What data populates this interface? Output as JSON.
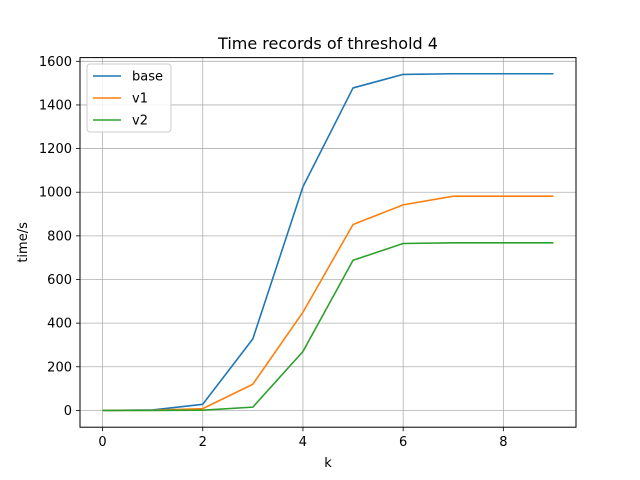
{
  "chart_data": {
    "type": "line",
    "title": "Time records of threshold 4",
    "xlabel": "k",
    "ylabel": "time/s",
    "xlim": [
      -0.45,
      9.45
    ],
    "ylim": [
      -77,
      1617
    ],
    "xticks": [
      0,
      2,
      4,
      6,
      8
    ],
    "yticks": [
      0,
      200,
      400,
      600,
      800,
      1000,
      1200,
      1400,
      1600
    ],
    "grid": true,
    "legend_position": "top-left",
    "x": [
      0,
      1,
      2,
      3,
      4,
      5,
      6,
      7,
      8,
      9
    ],
    "series": [
      {
        "name": "base",
        "color": "#1f77b4",
        "values": [
          0,
          2,
          28,
          328,
          1025,
          1478,
          1540,
          1543,
          1543,
          1543
        ]
      },
      {
        "name": "v1",
        "color": "#ff7f0e",
        "values": [
          0,
          1,
          8,
          120,
          450,
          852,
          942,
          982,
          982,
          982
        ]
      },
      {
        "name": "v2",
        "color": "#2ca02c",
        "values": [
          0,
          0,
          1,
          15,
          270,
          688,
          765,
          768,
          768,
          768
        ]
      }
    ]
  }
}
